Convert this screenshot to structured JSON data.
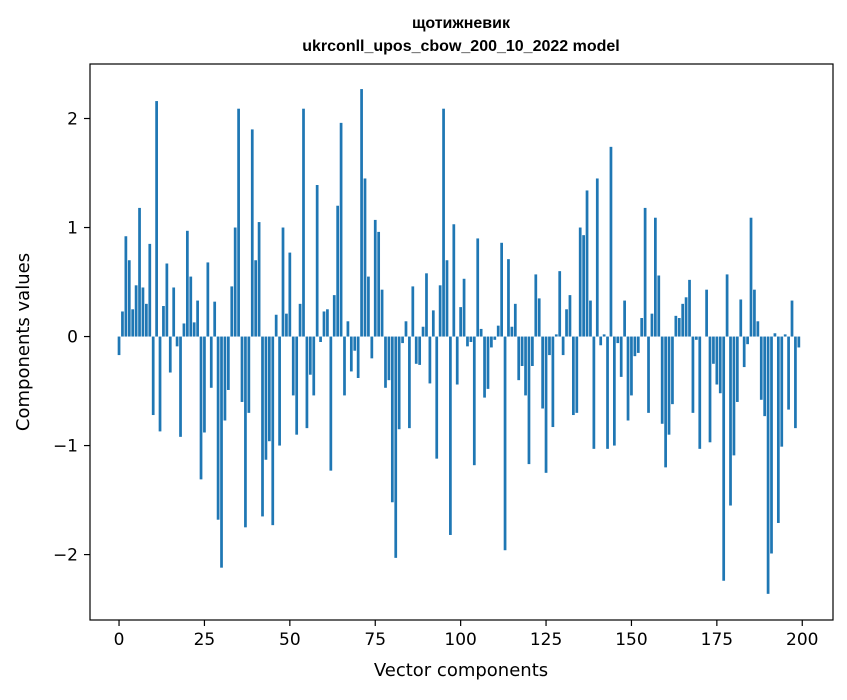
{
  "chart_data": {
    "type": "bar",
    "title_line1": "щотижневик",
    "title_line2": "ukrconll_upos_cbow_200_10_2022 model",
    "xlabel": "Vector components",
    "ylabel": "Components values",
    "xlim": [
      -8.5,
      209
    ],
    "ylim": [
      -2.6,
      2.5
    ],
    "xticks": [
      0,
      25,
      50,
      75,
      100,
      125,
      150,
      175,
      200
    ],
    "xtick_labels": [
      "0",
      "25",
      "50",
      "75",
      "100",
      "125",
      "150",
      "175",
      "200"
    ],
    "yticks": [
      -2,
      -1,
      0,
      1,
      2
    ],
    "ytick_labels": [
      "−2",
      "−1",
      "0",
      "1",
      "2"
    ],
    "bar_color": "#1f77b4",
    "grid": false,
    "values": [
      -0.17,
      0.23,
      0.92,
      0.7,
      0.25,
      0.47,
      1.18,
      0.45,
      0.3,
      0.85,
      -0.72,
      2.16,
      -0.87,
      0.28,
      0.67,
      -0.33,
      0.45,
      -0.09,
      -0.92,
      0.12,
      0.97,
      0.55,
      0.13,
      0.33,
      -1.31,
      -0.88,
      0.68,
      -0.47,
      0.32,
      -1.68,
      -2.12,
      -0.77,
      -0.49,
      0.46,
      1.0,
      2.09,
      -0.6,
      -1.75,
      -0.7,
      1.9,
      0.7,
      1.05,
      -1.65,
      -1.13,
      -0.96,
      -1.73,
      0.2,
      -1.0,
      1.0,
      0.21,
      0.77,
      -0.54,
      -0.9,
      0.3,
      2.09,
      -0.84,
      -0.35,
      -0.54,
      1.39,
      -0.05,
      0.23,
      0.25,
      -1.23,
      0.38,
      1.2,
      1.96,
      -0.54,
      0.14,
      -0.32,
      -0.13,
      -0.38,
      2.27,
      1.45,
      0.55,
      -0.2,
      1.07,
      0.96,
      0.43,
      -0.47,
      -0.4,
      -1.52,
      -2.03,
      -0.85,
      -0.06,
      0.14,
      -0.84,
      0.46,
      -0.25,
      -0.26,
      0.09,
      0.58,
      -0.43,
      0.24,
      -1.12,
      0.47,
      2.09,
      0.7,
      -1.82,
      1.03,
      -0.44,
      0.27,
      0.53,
      -0.09,
      -0.05,
      -1.18,
      0.9,
      0.07,
      -0.56,
      -0.48,
      -0.1,
      -0.03,
      0.1,
      0.86,
      -1.96,
      0.71,
      0.09,
      0.3,
      -0.4,
      -0.27,
      -0.54,
      -1.17,
      -0.27,
      0.57,
      0.35,
      -0.66,
      -1.25,
      -0.17,
      -0.83,
      0.02,
      0.6,
      -0.17,
      0.25,
      0.38,
      -0.72,
      -0.7,
      1.0,
      0.93,
      1.34,
      0.33,
      -1.03,
      1.45,
      -0.08,
      0.02,
      -1.03,
      1.74,
      -1.0,
      -0.06,
      -0.37,
      0.33,
      -0.77,
      -0.54,
      -0.18,
      -0.15,
      0.17,
      1.18,
      -0.7,
      0.21,
      1.09,
      0.56,
      -0.8,
      -1.2,
      -0.9,
      -0.62,
      0.19,
      0.17,
      0.3,
      0.36,
      0.52,
      -0.7,
      -0.03,
      -1.03,
      0.0,
      0.43,
      -0.97,
      -0.25,
      -0.44,
      -0.52,
      -2.24,
      0.57,
      -1.55,
      -1.09,
      -0.6,
      0.34,
      -0.28,
      -0.07,
      1.09,
      0.43,
      0.14,
      -0.58,
      -0.73,
      -2.36,
      -1.99,
      0.03,
      -1.71,
      -1.01,
      0.02,
      -0.67,
      0.33,
      -0.84,
      -0.1
    ]
  }
}
